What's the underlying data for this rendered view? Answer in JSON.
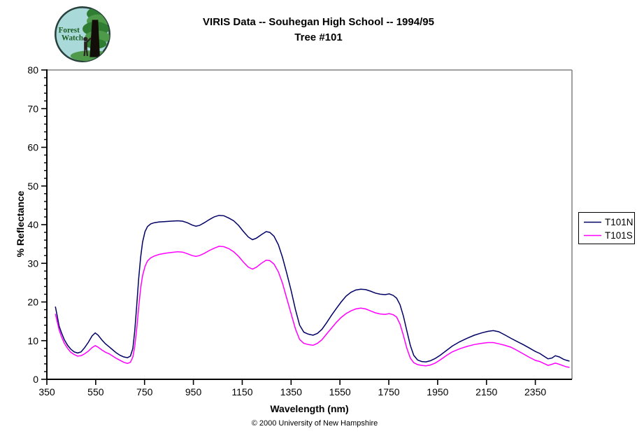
{
  "logo": {
    "line1": "Forest",
    "line2": "Watch"
  },
  "footer": {
    "copyright": "© 2000 University of New Hampshire"
  },
  "chart_data": {
    "type": "line",
    "title": "VIRIS Data -- Souhegan High School -- 1994/95 Tree #101",
    "title_line1": "VIRIS Data -- Souhegan High School -- 1994/95",
    "title_line2": "Tree #101",
    "xlabel": "Wavelength (nm)",
    "ylabel": "% Reflectance",
    "xlim": [
      350,
      2500
    ],
    "ylim": [
      0,
      80
    ],
    "x_ticks": [
      350,
      550,
      750,
      950,
      1150,
      1350,
      1550,
      1750,
      1950,
      2150,
      2350
    ],
    "y_ticks": [
      0,
      10,
      20,
      30,
      40,
      50,
      60,
      70,
      80
    ],
    "y_minor_step": 2,
    "grid": false,
    "legend_position": "right-outside",
    "frame_color": "#808080",
    "axis_color": "#000000",
    "series": [
      {
        "name": "T101N",
        "color": "#000066",
        "points": [
          [
            385,
            18.8
          ],
          [
            392,
            16.5
          ],
          [
            400,
            13.8
          ],
          [
            410,
            12.0
          ],
          [
            422,
            10.2
          ],
          [
            435,
            8.8
          ],
          [
            448,
            7.8
          ],
          [
            462,
            7.1
          ],
          [
            476,
            6.8
          ],
          [
            490,
            7.1
          ],
          [
            505,
            8.2
          ],
          [
            520,
            9.6
          ],
          [
            535,
            11.2
          ],
          [
            548,
            12.0
          ],
          [
            560,
            11.4
          ],
          [
            575,
            10.2
          ],
          [
            590,
            9.2
          ],
          [
            605,
            8.4
          ],
          [
            620,
            7.6
          ],
          [
            635,
            6.8
          ],
          [
            650,
            6.2
          ],
          [
            665,
            5.8
          ],
          [
            680,
            5.6
          ],
          [
            692,
            6.0
          ],
          [
            702,
            8.0
          ],
          [
            710,
            12.5
          ],
          [
            718,
            19.0
          ],
          [
            726,
            26.0
          ],
          [
            734,
            31.5
          ],
          [
            742,
            35.5
          ],
          [
            752,
            38.2
          ],
          [
            762,
            39.5
          ],
          [
            775,
            40.2
          ],
          [
            790,
            40.5
          ],
          [
            810,
            40.7
          ],
          [
            835,
            40.8
          ],
          [
            860,
            40.9
          ],
          [
            885,
            41.0
          ],
          [
            905,
            40.9
          ],
          [
            925,
            40.5
          ],
          [
            945,
            39.9
          ],
          [
            960,
            39.6
          ],
          [
            975,
            39.8
          ],
          [
            995,
            40.5
          ],
          [
            1015,
            41.3
          ],
          [
            1035,
            42.0
          ],
          [
            1055,
            42.4
          ],
          [
            1075,
            42.3
          ],
          [
            1095,
            41.7
          ],
          [
            1115,
            41.0
          ],
          [
            1135,
            39.8
          ],
          [
            1155,
            38.2
          ],
          [
            1175,
            36.8
          ],
          [
            1192,
            36.1
          ],
          [
            1208,
            36.5
          ],
          [
            1228,
            37.4
          ],
          [
            1248,
            38.2
          ],
          [
            1263,
            38.0
          ],
          [
            1280,
            37.0
          ],
          [
            1298,
            34.8
          ],
          [
            1315,
            31.5
          ],
          [
            1332,
            27.5
          ],
          [
            1350,
            23.0
          ],
          [
            1368,
            18.0
          ],
          [
            1385,
            14.0
          ],
          [
            1402,
            12.2
          ],
          [
            1420,
            11.7
          ],
          [
            1440,
            11.4
          ],
          [
            1458,
            11.9
          ],
          [
            1476,
            12.9
          ],
          [
            1495,
            14.6
          ],
          [
            1515,
            16.5
          ],
          [
            1535,
            18.3
          ],
          [
            1555,
            20.0
          ],
          [
            1575,
            21.5
          ],
          [
            1595,
            22.5
          ],
          [
            1615,
            23.1
          ],
          [
            1635,
            23.3
          ],
          [
            1655,
            23.2
          ],
          [
            1675,
            22.8
          ],
          [
            1695,
            22.3
          ],
          [
            1715,
            22.0
          ],
          [
            1735,
            21.9
          ],
          [
            1752,
            22.1
          ],
          [
            1768,
            21.7
          ],
          [
            1782,
            21.0
          ],
          [
            1796,
            19.3
          ],
          [
            1810,
            16.3
          ],
          [
            1824,
            12.5
          ],
          [
            1838,
            8.8
          ],
          [
            1852,
            6.2
          ],
          [
            1868,
            5.0
          ],
          [
            1885,
            4.6
          ],
          [
            1902,
            4.5
          ],
          [
            1920,
            4.8
          ],
          [
            1940,
            5.4
          ],
          [
            1960,
            6.2
          ],
          [
            1985,
            7.4
          ],
          [
            2010,
            8.6
          ],
          [
            2040,
            9.7
          ],
          [
            2070,
            10.6
          ],
          [
            2100,
            11.4
          ],
          [
            2130,
            12.0
          ],
          [
            2155,
            12.4
          ],
          [
            2178,
            12.6
          ],
          [
            2200,
            12.3
          ],
          [
            2225,
            11.5
          ],
          [
            2250,
            10.6
          ],
          [
            2275,
            9.8
          ],
          [
            2300,
            9.0
          ],
          [
            2325,
            8.1
          ],
          [
            2350,
            7.2
          ],
          [
            2368,
            6.7
          ],
          [
            2385,
            6.0
          ],
          [
            2402,
            5.3
          ],
          [
            2418,
            5.5
          ],
          [
            2432,
            6.1
          ],
          [
            2448,
            5.8
          ],
          [
            2465,
            5.2
          ],
          [
            2478,
            4.9
          ],
          [
            2490,
            4.7
          ]
        ]
      },
      {
        "name": "T101S",
        "color": "#FF00FF",
        "points": [
          [
            385,
            16.9
          ],
          [
            392,
            15.0
          ],
          [
            400,
            12.8
          ],
          [
            410,
            11.0
          ],
          [
            422,
            9.3
          ],
          [
            435,
            8.0
          ],
          [
            448,
            7.0
          ],
          [
            462,
            6.4
          ],
          [
            476,
            6.0
          ],
          [
            490,
            6.1
          ],
          [
            505,
            6.6
          ],
          [
            520,
            7.3
          ],
          [
            535,
            8.2
          ],
          [
            548,
            8.7
          ],
          [
            560,
            8.3
          ],
          [
            575,
            7.6
          ],
          [
            590,
            7.0
          ],
          [
            605,
            6.6
          ],
          [
            620,
            6.0
          ],
          [
            635,
            5.4
          ],
          [
            650,
            4.9
          ],
          [
            665,
            4.4
          ],
          [
            680,
            4.1
          ],
          [
            692,
            4.4
          ],
          [
            702,
            5.8
          ],
          [
            710,
            8.5
          ],
          [
            718,
            13.0
          ],
          [
            726,
            18.5
          ],
          [
            734,
            23.5
          ],
          [
            742,
            26.8
          ],
          [
            752,
            29.2
          ],
          [
            762,
            30.6
          ],
          [
            775,
            31.4
          ],
          [
            790,
            31.9
          ],
          [
            810,
            32.3
          ],
          [
            835,
            32.6
          ],
          [
            860,
            32.8
          ],
          [
            885,
            33.0
          ],
          [
            905,
            32.9
          ],
          [
            925,
            32.5
          ],
          [
            945,
            32.0
          ],
          [
            960,
            31.8
          ],
          [
            975,
            32.0
          ],
          [
            995,
            32.6
          ],
          [
            1015,
            33.3
          ],
          [
            1035,
            33.9
          ],
          [
            1055,
            34.4
          ],
          [
            1075,
            34.3
          ],
          [
            1095,
            33.8
          ],
          [
            1115,
            33.0
          ],
          [
            1135,
            31.8
          ],
          [
            1155,
            30.3
          ],
          [
            1175,
            29.0
          ],
          [
            1192,
            28.5
          ],
          [
            1208,
            29.0
          ],
          [
            1228,
            30.0
          ],
          [
            1248,
            30.8
          ],
          [
            1263,
            30.7
          ],
          [
            1280,
            29.8
          ],
          [
            1298,
            27.8
          ],
          [
            1315,
            24.8
          ],
          [
            1332,
            21.0
          ],
          [
            1350,
            17.0
          ],
          [
            1368,
            13.0
          ],
          [
            1385,
            10.3
          ],
          [
            1402,
            9.3
          ],
          [
            1420,
            9.0
          ],
          [
            1440,
            8.8
          ],
          [
            1458,
            9.3
          ],
          [
            1476,
            10.2
          ],
          [
            1495,
            11.7
          ],
          [
            1515,
            13.2
          ],
          [
            1535,
            14.7
          ],
          [
            1555,
            16.0
          ],
          [
            1575,
            17.0
          ],
          [
            1595,
            17.7
          ],
          [
            1615,
            18.2
          ],
          [
            1635,
            18.4
          ],
          [
            1655,
            18.2
          ],
          [
            1675,
            17.7
          ],
          [
            1695,
            17.2
          ],
          [
            1715,
            16.9
          ],
          [
            1735,
            16.8
          ],
          [
            1752,
            17.0
          ],
          [
            1768,
            16.7
          ],
          [
            1782,
            16.1
          ],
          [
            1796,
            14.3
          ],
          [
            1810,
            11.3
          ],
          [
            1824,
            8.0
          ],
          [
            1838,
            5.5
          ],
          [
            1852,
            4.3
          ],
          [
            1868,
            3.8
          ],
          [
            1885,
            3.6
          ],
          [
            1902,
            3.5
          ],
          [
            1920,
            3.7
          ],
          [
            1940,
            4.2
          ],
          [
            1960,
            5.0
          ],
          [
            1985,
            6.1
          ],
          [
            2010,
            7.1
          ],
          [
            2040,
            7.9
          ],
          [
            2070,
            8.5
          ],
          [
            2100,
            9.0
          ],
          [
            2130,
            9.3
          ],
          [
            2155,
            9.5
          ],
          [
            2178,
            9.5
          ],
          [
            2200,
            9.2
          ],
          [
            2225,
            8.8
          ],
          [
            2250,
            8.3
          ],
          [
            2275,
            7.5
          ],
          [
            2300,
            6.6
          ],
          [
            2325,
            5.7
          ],
          [
            2350,
            4.9
          ],
          [
            2368,
            4.6
          ],
          [
            2385,
            4.1
          ],
          [
            2402,
            3.6
          ],
          [
            2418,
            3.9
          ],
          [
            2432,
            4.2
          ],
          [
            2448,
            3.9
          ],
          [
            2465,
            3.5
          ],
          [
            2478,
            3.2
          ],
          [
            2490,
            3.1
          ]
        ]
      }
    ]
  }
}
